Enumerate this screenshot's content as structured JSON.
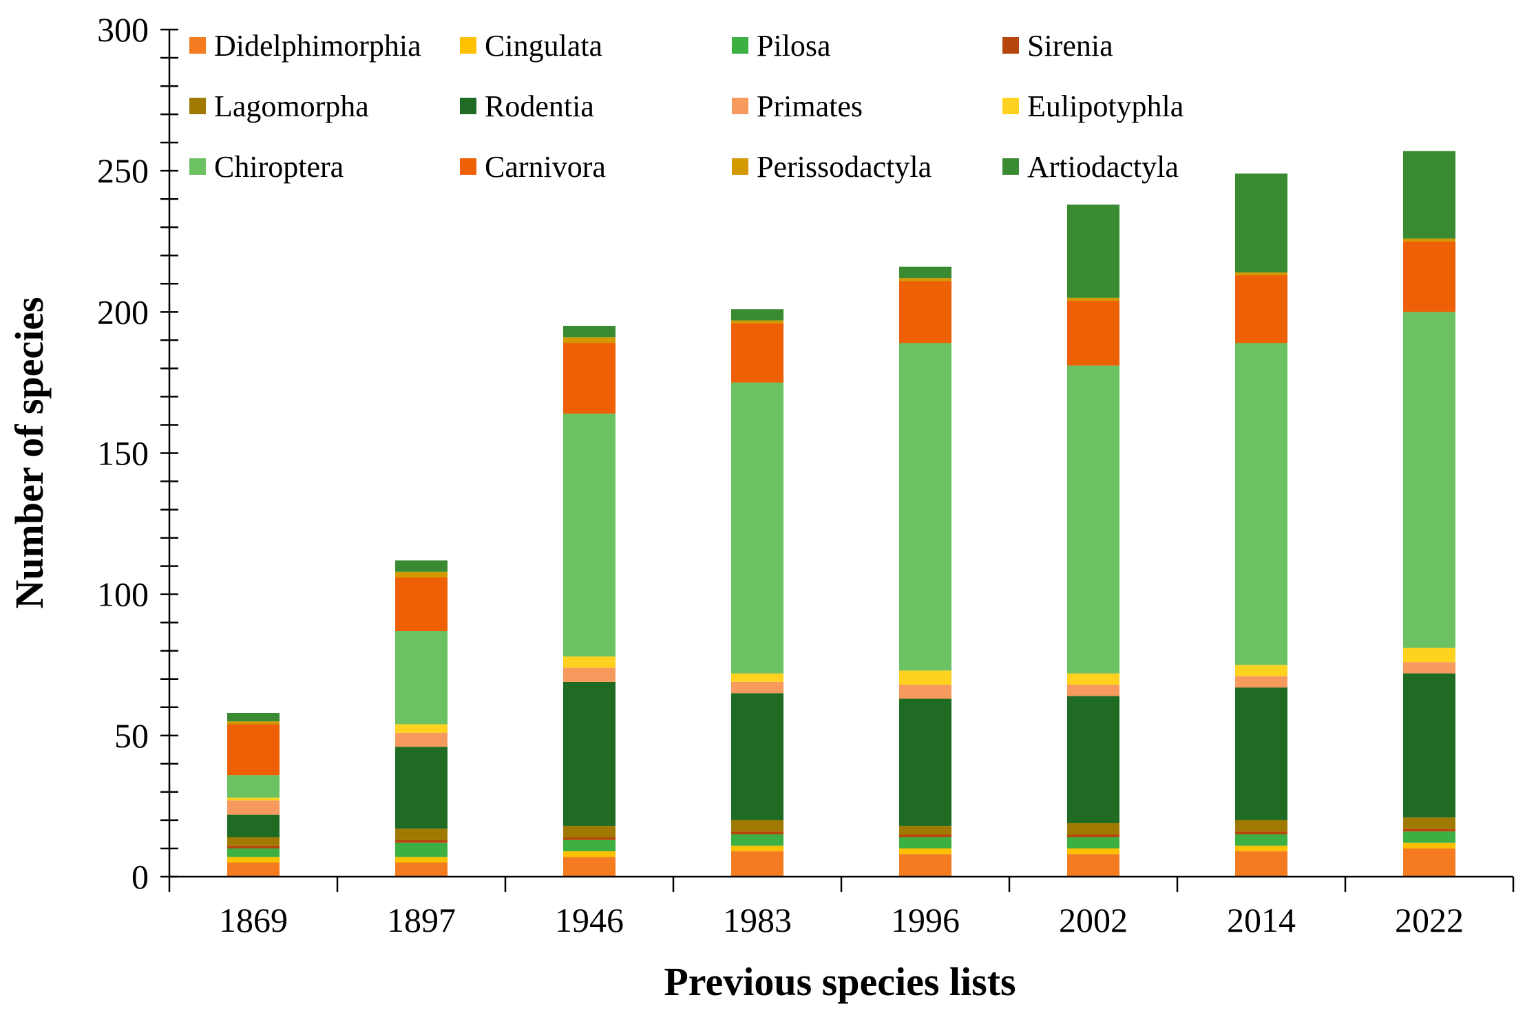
{
  "chart_data": {
    "type": "bar",
    "stacked": true,
    "xlabel": "Previous species lists",
    "ylabel": "Number of species",
    "ylim": [
      0,
      300
    ],
    "yticks": [
      0,
      50,
      100,
      150,
      200,
      250,
      300
    ],
    "ytick_labels": [
      "0",
      "50",
      "100",
      "150",
      "200",
      "250",
      "300"
    ],
    "y_minor_step": 10,
    "grid": false,
    "legend_position": "top",
    "categories": [
      "1869",
      "1897",
      "1946",
      "1983",
      "1996",
      "2002",
      "2014",
      "2022"
    ],
    "series": [
      {
        "name": "Didelphimorphia",
        "color": "#F47B20",
        "values": [
          5,
          5,
          7,
          9,
          8,
          8,
          9,
          10
        ]
      },
      {
        "name": "Cingulata",
        "color": "#FFC000",
        "values": [
          2,
          2,
          2,
          2,
          2,
          2,
          2,
          2
        ]
      },
      {
        "name": "Pilosa",
        "color": "#3CB043",
        "values": [
          3,
          5,
          4,
          4,
          4,
          4,
          4,
          4
        ]
      },
      {
        "name": "Sirenia",
        "color": "#B5470C",
        "values": [
          1,
          1,
          1,
          1,
          1,
          1,
          1,
          1
        ]
      },
      {
        "name": "Lagomorpha",
        "color": "#A07A00",
        "values": [
          3,
          4,
          4,
          4,
          3,
          4,
          4,
          4
        ]
      },
      {
        "name": "Rodentia",
        "color": "#1F6B24",
        "values": [
          8,
          29,
          51,
          45,
          45,
          45,
          47,
          51
        ]
      },
      {
        "name": "Primates",
        "color": "#F79A5E",
        "values": [
          5,
          5,
          5,
          4,
          5,
          4,
          4,
          4
        ]
      },
      {
        "name": "Eulipotyphla",
        "color": "#FFD21F",
        "values": [
          1,
          3,
          4,
          3,
          5,
          4,
          4,
          5
        ]
      },
      {
        "name": "Chiroptera",
        "color": "#6CC262",
        "values": [
          8,
          33,
          86,
          103,
          116,
          109,
          114,
          119
        ]
      },
      {
        "name": "Carnivora",
        "color": "#EE6005",
        "values": [
          18,
          19,
          25,
          21,
          22,
          23,
          24,
          25
        ]
      },
      {
        "name": "Perissodactyla",
        "color": "#D39A00",
        "values": [
          1,
          2,
          2,
          1,
          1,
          1,
          1,
          1
        ]
      },
      {
        "name": "Artiodactyla",
        "color": "#3A8A32",
        "values": [
          3,
          4,
          4,
          4,
          4,
          33,
          35,
          31
        ]
      }
    ]
  }
}
